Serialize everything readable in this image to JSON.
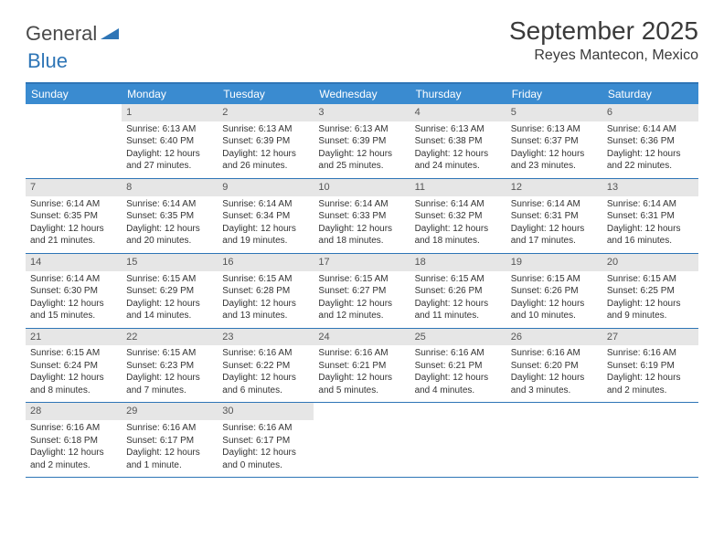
{
  "logo": {
    "text_a": "General",
    "text_b": "Blue"
  },
  "header": {
    "title": "September 2025",
    "location": "Reyes Mantecon, Mexico"
  },
  "colors": {
    "header_bar": "#3a8bd0",
    "accent_border": "#2e75b6",
    "daynum_bg": "#e6e6e6",
    "text": "#333333",
    "background": "#ffffff"
  },
  "weekdays": [
    "Sunday",
    "Monday",
    "Tuesday",
    "Wednesday",
    "Thursday",
    "Friday",
    "Saturday"
  ],
  "weeks": [
    [
      {
        "n": "",
        "sr": "",
        "ss": "",
        "dl": ""
      },
      {
        "n": "1",
        "sr": "Sunrise: 6:13 AM",
        "ss": "Sunset: 6:40 PM",
        "dl": "Daylight: 12 hours and 27 minutes."
      },
      {
        "n": "2",
        "sr": "Sunrise: 6:13 AM",
        "ss": "Sunset: 6:39 PM",
        "dl": "Daylight: 12 hours and 26 minutes."
      },
      {
        "n": "3",
        "sr": "Sunrise: 6:13 AM",
        "ss": "Sunset: 6:39 PM",
        "dl": "Daylight: 12 hours and 25 minutes."
      },
      {
        "n": "4",
        "sr": "Sunrise: 6:13 AM",
        "ss": "Sunset: 6:38 PM",
        "dl": "Daylight: 12 hours and 24 minutes."
      },
      {
        "n": "5",
        "sr": "Sunrise: 6:13 AM",
        "ss": "Sunset: 6:37 PM",
        "dl": "Daylight: 12 hours and 23 minutes."
      },
      {
        "n": "6",
        "sr": "Sunrise: 6:14 AM",
        "ss": "Sunset: 6:36 PM",
        "dl": "Daylight: 12 hours and 22 minutes."
      }
    ],
    [
      {
        "n": "7",
        "sr": "Sunrise: 6:14 AM",
        "ss": "Sunset: 6:35 PM",
        "dl": "Daylight: 12 hours and 21 minutes."
      },
      {
        "n": "8",
        "sr": "Sunrise: 6:14 AM",
        "ss": "Sunset: 6:35 PM",
        "dl": "Daylight: 12 hours and 20 minutes."
      },
      {
        "n": "9",
        "sr": "Sunrise: 6:14 AM",
        "ss": "Sunset: 6:34 PM",
        "dl": "Daylight: 12 hours and 19 minutes."
      },
      {
        "n": "10",
        "sr": "Sunrise: 6:14 AM",
        "ss": "Sunset: 6:33 PM",
        "dl": "Daylight: 12 hours and 18 minutes."
      },
      {
        "n": "11",
        "sr": "Sunrise: 6:14 AM",
        "ss": "Sunset: 6:32 PM",
        "dl": "Daylight: 12 hours and 18 minutes."
      },
      {
        "n": "12",
        "sr": "Sunrise: 6:14 AM",
        "ss": "Sunset: 6:31 PM",
        "dl": "Daylight: 12 hours and 17 minutes."
      },
      {
        "n": "13",
        "sr": "Sunrise: 6:14 AM",
        "ss": "Sunset: 6:31 PM",
        "dl": "Daylight: 12 hours and 16 minutes."
      }
    ],
    [
      {
        "n": "14",
        "sr": "Sunrise: 6:14 AM",
        "ss": "Sunset: 6:30 PM",
        "dl": "Daylight: 12 hours and 15 minutes."
      },
      {
        "n": "15",
        "sr": "Sunrise: 6:15 AM",
        "ss": "Sunset: 6:29 PM",
        "dl": "Daylight: 12 hours and 14 minutes."
      },
      {
        "n": "16",
        "sr": "Sunrise: 6:15 AM",
        "ss": "Sunset: 6:28 PM",
        "dl": "Daylight: 12 hours and 13 minutes."
      },
      {
        "n": "17",
        "sr": "Sunrise: 6:15 AM",
        "ss": "Sunset: 6:27 PM",
        "dl": "Daylight: 12 hours and 12 minutes."
      },
      {
        "n": "18",
        "sr": "Sunrise: 6:15 AM",
        "ss": "Sunset: 6:26 PM",
        "dl": "Daylight: 12 hours and 11 minutes."
      },
      {
        "n": "19",
        "sr": "Sunrise: 6:15 AM",
        "ss": "Sunset: 6:26 PM",
        "dl": "Daylight: 12 hours and 10 minutes."
      },
      {
        "n": "20",
        "sr": "Sunrise: 6:15 AM",
        "ss": "Sunset: 6:25 PM",
        "dl": "Daylight: 12 hours and 9 minutes."
      }
    ],
    [
      {
        "n": "21",
        "sr": "Sunrise: 6:15 AM",
        "ss": "Sunset: 6:24 PM",
        "dl": "Daylight: 12 hours and 8 minutes."
      },
      {
        "n": "22",
        "sr": "Sunrise: 6:15 AM",
        "ss": "Sunset: 6:23 PM",
        "dl": "Daylight: 12 hours and 7 minutes."
      },
      {
        "n": "23",
        "sr": "Sunrise: 6:16 AM",
        "ss": "Sunset: 6:22 PM",
        "dl": "Daylight: 12 hours and 6 minutes."
      },
      {
        "n": "24",
        "sr": "Sunrise: 6:16 AM",
        "ss": "Sunset: 6:21 PM",
        "dl": "Daylight: 12 hours and 5 minutes."
      },
      {
        "n": "25",
        "sr": "Sunrise: 6:16 AM",
        "ss": "Sunset: 6:21 PM",
        "dl": "Daylight: 12 hours and 4 minutes."
      },
      {
        "n": "26",
        "sr": "Sunrise: 6:16 AM",
        "ss": "Sunset: 6:20 PM",
        "dl": "Daylight: 12 hours and 3 minutes."
      },
      {
        "n": "27",
        "sr": "Sunrise: 6:16 AM",
        "ss": "Sunset: 6:19 PM",
        "dl": "Daylight: 12 hours and 2 minutes."
      }
    ],
    [
      {
        "n": "28",
        "sr": "Sunrise: 6:16 AM",
        "ss": "Sunset: 6:18 PM",
        "dl": "Daylight: 12 hours and 2 minutes."
      },
      {
        "n": "29",
        "sr": "Sunrise: 6:16 AM",
        "ss": "Sunset: 6:17 PM",
        "dl": "Daylight: 12 hours and 1 minute."
      },
      {
        "n": "30",
        "sr": "Sunrise: 6:16 AM",
        "ss": "Sunset: 6:17 PM",
        "dl": "Daylight: 12 hours and 0 minutes."
      },
      {
        "n": "",
        "sr": "",
        "ss": "",
        "dl": ""
      },
      {
        "n": "",
        "sr": "",
        "ss": "",
        "dl": ""
      },
      {
        "n": "",
        "sr": "",
        "ss": "",
        "dl": ""
      },
      {
        "n": "",
        "sr": "",
        "ss": "",
        "dl": ""
      }
    ]
  ]
}
